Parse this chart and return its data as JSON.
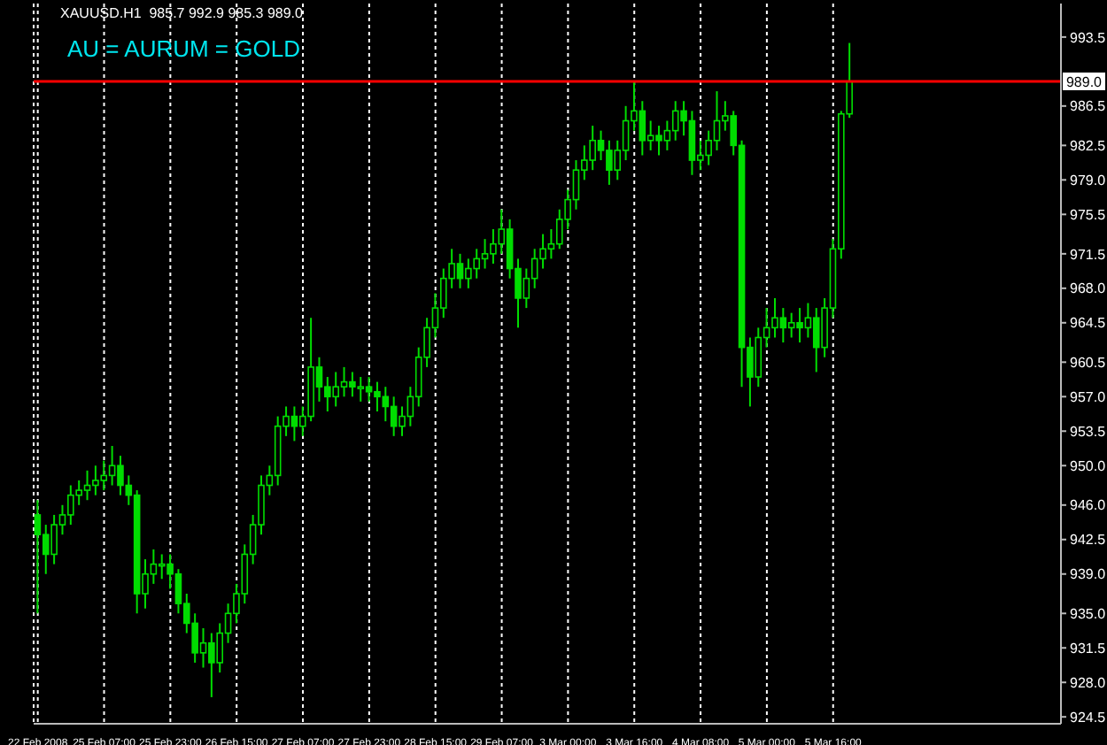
{
  "chart_data": {
    "type": "candlestick",
    "title": "XAUUSD.H1  985.7 992.9 985.3 989.0",
    "annotations": [
      "AU = AURUM = GOLD"
    ],
    "color": "#00dd00",
    "grid": "x",
    "categories": [
      "22 Feb 2008",
      null,
      null,
      null,
      null,
      null,
      null,
      null,
      "25 Feb 07:00",
      null,
      null,
      null,
      null,
      null,
      null,
      null,
      "25 Feb 23:00",
      null,
      null,
      null,
      null,
      null,
      null,
      null,
      "26 Feb 15:00",
      null,
      null,
      null,
      null,
      null,
      null,
      null,
      "27 Feb 07:00",
      null,
      null,
      null,
      null,
      null,
      null,
      null,
      "27 Feb 23:00",
      null,
      null,
      null,
      null,
      null,
      null,
      null,
      "28 Feb 15:00",
      null,
      null,
      null,
      null,
      null,
      null,
      null,
      "29 Feb 07:00",
      null,
      null,
      null,
      null,
      null,
      null,
      null,
      "3 Mar 00:00",
      null,
      null,
      null,
      null,
      null,
      null,
      null,
      "3 Mar 16:00",
      null,
      null,
      null,
      null,
      null,
      null,
      null,
      "4 Mar 08:00",
      null,
      null,
      null,
      null,
      null,
      null,
      null,
      "5 Mar 00:00",
      null,
      null,
      null,
      null,
      null,
      null,
      null,
      "5 Mar 16:00",
      null,
      null,
      null,
      null,
      null,
      null,
      null,
      null,
      null,
      null,
      null,
      null,
      null,
      null,
      null,
      null,
      null,
      null,
      null,
      null,
      null,
      null,
      null,
      null,
      null,
      null,
      null
    ],
    "ohlc": [
      [
        945,
        946.5,
        935,
        943
      ],
      [
        943,
        944,
        939,
        941
      ],
      [
        941,
        945,
        940,
        944
      ],
      [
        944,
        946,
        943,
        945
      ],
      [
        945,
        948,
        944,
        947
      ],
      [
        947,
        948.5,
        946,
        947.5
      ],
      [
        947.5,
        949.5,
        946.5,
        948
      ],
      [
        948,
        950,
        947,
        948.5
      ],
      [
        948.5,
        950.5,
        947.5,
        949
      ],
      [
        949,
        952,
        948,
        950
      ],
      [
        950,
        951,
        947,
        948
      ],
      [
        948,
        949,
        946,
        947
      ],
      [
        947,
        947.5,
        935,
        937
      ],
      [
        937,
        940.5,
        935.5,
        939
      ],
      [
        939,
        941.5,
        938,
        940
      ],
      [
        940,
        941,
        938.5,
        940
      ],
      [
        940,
        941,
        937.5,
        939
      ],
      [
        939,
        939.5,
        935,
        936
      ],
      [
        936,
        937,
        933,
        934
      ],
      [
        934,
        935,
        930,
        931
      ],
      [
        931,
        933.5,
        929.5,
        932
      ],
      [
        932,
        933,
        926.5,
        930
      ],
      [
        930,
        934,
        929,
        933
      ],
      [
        933,
        936,
        932,
        935
      ],
      [
        935,
        938,
        934,
        937
      ],
      [
        937,
        942,
        936,
        941
      ],
      [
        941,
        945,
        940,
        944
      ],
      [
        944,
        949,
        943,
        948
      ],
      [
        948,
        950,
        947,
        949
      ],
      [
        949,
        955,
        948,
        954
      ],
      [
        954,
        956,
        953,
        955
      ],
      [
        955,
        956,
        952.5,
        954
      ],
      [
        954,
        956,
        953,
        955
      ],
      [
        955,
        965,
        954.5,
        960
      ],
      [
        960,
        961,
        956.5,
        958
      ],
      [
        958,
        959,
        955.5,
        957
      ],
      [
        957,
        959.5,
        956,
        958
      ],
      [
        958,
        960,
        957,
        958.5
      ],
      [
        958.5,
        959.5,
        957,
        958
      ],
      [
        958,
        959,
        956.5,
        958
      ],
      [
        958,
        959,
        956.5,
        957.5
      ],
      [
        957.5,
        958.5,
        955.5,
        957
      ],
      [
        957,
        958,
        954.5,
        956
      ],
      [
        956,
        957,
        953,
        954
      ],
      [
        954,
        956,
        953,
        955
      ],
      [
        955,
        958,
        954,
        957
      ],
      [
        957,
        962,
        956,
        961
      ],
      [
        961,
        965,
        960,
        964
      ],
      [
        964,
        967.5,
        963,
        966
      ],
      [
        966,
        970,
        965,
        969
      ],
      [
        969,
        972,
        968,
        970.5
      ],
      [
        970.5,
        971.5,
        968,
        969
      ],
      [
        969,
        971,
        968,
        970
      ],
      [
        970,
        972,
        969,
        971
      ],
      [
        971,
        973,
        970,
        971.5
      ],
      [
        971.5,
        974,
        970.5,
        972.5
      ],
      [
        972.5,
        976,
        971.5,
        974
      ],
      [
        974,
        975,
        969,
        970
      ],
      [
        970,
        971,
        964,
        967
      ],
      [
        967,
        970,
        966,
        969
      ],
      [
        969,
        972,
        968,
        971
      ],
      [
        971,
        973.5,
        970,
        972
      ],
      [
        972,
        974,
        971,
        972.5
      ],
      [
        972.5,
        976,
        972,
        975
      ],
      [
        975,
        978,
        974,
        977
      ],
      [
        977,
        981,
        976,
        980
      ],
      [
        980,
        982.5,
        979,
        981
      ],
      [
        981,
        984.5,
        980,
        983
      ],
      [
        983,
        984,
        981,
        982
      ],
      [
        982,
        983,
        978.5,
        980
      ],
      [
        980,
        983,
        979,
        982
      ],
      [
        982,
        986.5,
        981,
        985
      ],
      [
        985,
        989,
        984,
        986
      ],
      [
        986,
        987,
        981.5,
        983
      ],
      [
        983,
        985,
        982,
        983.5
      ],
      [
        983.5,
        984.5,
        981.5,
        983
      ],
      [
        983,
        985,
        982,
        984
      ],
      [
        984,
        987,
        983,
        986
      ],
      [
        986,
        987,
        983.5,
        985
      ],
      [
        985,
        986,
        979.5,
        981
      ],
      [
        981,
        983,
        980,
        981.5
      ],
      [
        981.5,
        984,
        980.5,
        983
      ],
      [
        983,
        988,
        982,
        985
      ],
      [
        985,
        987,
        984,
        985.5
      ],
      [
        985.5,
        986,
        981.5,
        982.5
      ],
      [
        982.5,
        983,
        958,
        962
      ],
      [
        962,
        963,
        956,
        959
      ],
      [
        959,
        964,
        958,
        963
      ],
      [
        963,
        966,
        962,
        964
      ],
      [
        964,
        967,
        963,
        965
      ],
      [
        965,
        966,
        962.5,
        964
      ],
      [
        964,
        965.5,
        963,
        964.5
      ],
      [
        964.5,
        966,
        962.5,
        964
      ],
      [
        964,
        966.5,
        963,
        965
      ],
      [
        965,
        966,
        959.5,
        962
      ],
      [
        962,
        967,
        961,
        966
      ],
      [
        966,
        973,
        965,
        972
      ],
      [
        972,
        986,
        971,
        985.7
      ],
      [
        985.7,
        992.9,
        985.3,
        989.0
      ],
      null,
      null,
      null,
      null,
      null,
      null,
      null,
      null,
      null,
      null,
      null,
      null,
      null,
      null,
      null,
      null,
      null,
      null,
      null,
      null,
      null,
      null,
      null,
      null,
      null
    ],
    "ylim": [
      923.8,
      996.9
    ],
    "yticks": [
      {
        "value": 924.5,
        "label": "924.5"
      },
      {
        "value": 928,
        "label": "928.0"
      },
      {
        "value": 931.5,
        "label": "931.5"
      },
      {
        "value": 935,
        "label": "935.0"
      },
      {
        "value": 939,
        "label": "939.0"
      },
      {
        "value": 942.5,
        "label": "942.5"
      },
      {
        "value": 946,
        "label": "946.0"
      },
      {
        "value": 950,
        "label": "950.0"
      },
      {
        "value": 953.5,
        "label": "953.5"
      },
      {
        "value": 957,
        "label": "957.0"
      },
      {
        "value": 960.5,
        "label": "960.5"
      },
      {
        "value": 964.5,
        "label": "964.5"
      },
      {
        "value": 968,
        "label": "968.0"
      },
      {
        "value": 971.5,
        "label": "971.5"
      },
      {
        "value": 975.5,
        "label": "975.5"
      },
      {
        "value": 979,
        "label": "979.0"
      },
      {
        "value": 982.5,
        "label": "982.5"
      },
      {
        "value": 986.5,
        "label": "986.5"
      },
      {
        "value": 993.5,
        "label": "993.5"
      }
    ],
    "ref_lines": [
      {
        "axis": "y",
        "value": 989.0,
        "label": "989.0",
        "color": "#ff0000"
      }
    ]
  }
}
